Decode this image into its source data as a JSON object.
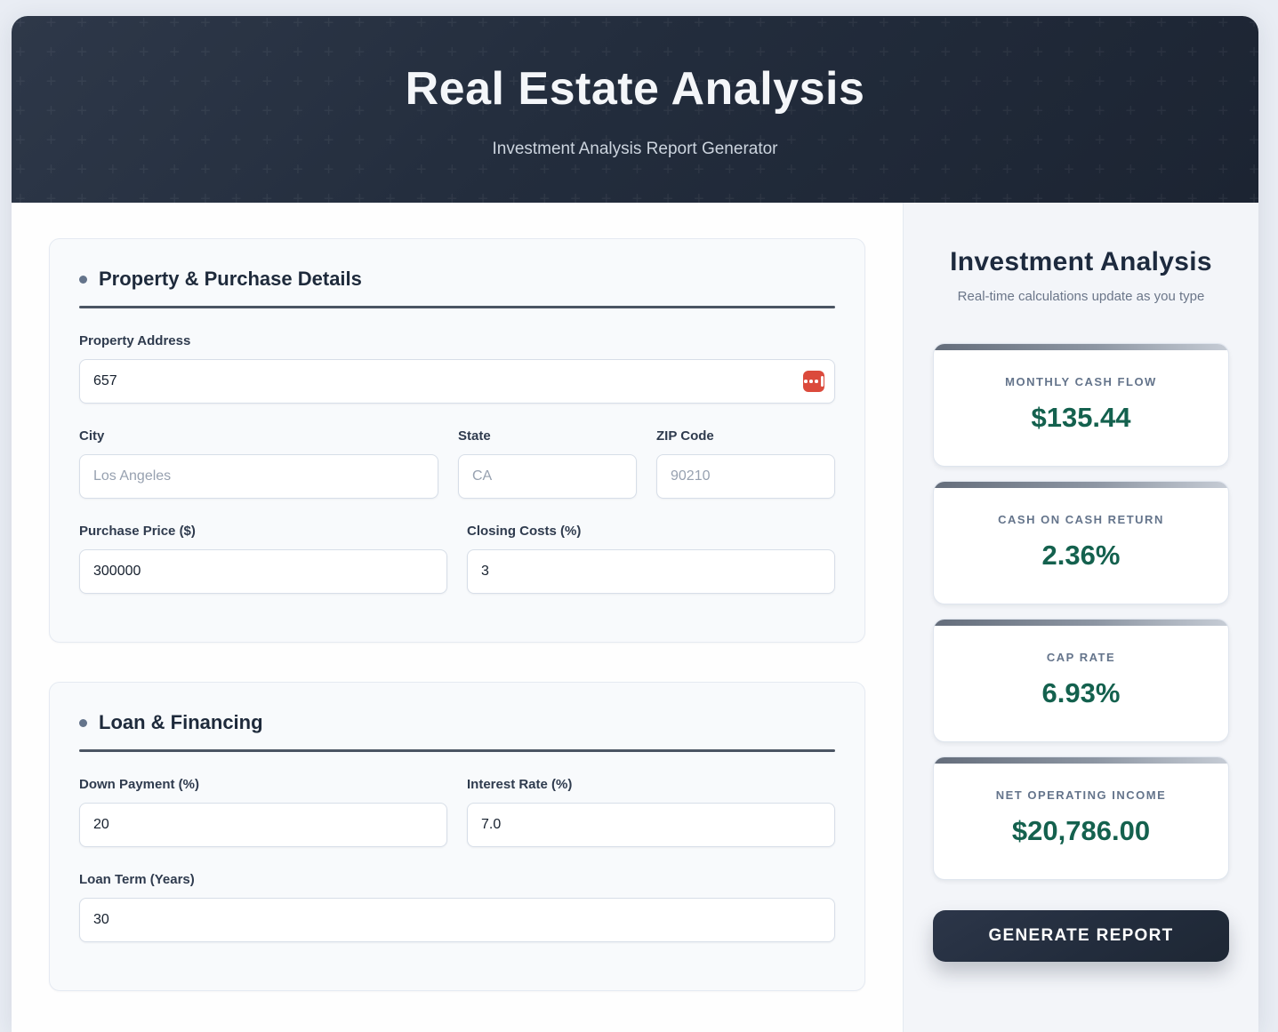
{
  "header": {
    "title": "Real Estate Analysis",
    "subtitle": "Investment Analysis Report Generator",
    "pattern_glyph": "+"
  },
  "form": {
    "sections": {
      "property": {
        "title": "Property & Purchase Details",
        "fields": {
          "address": {
            "label": "Property Address",
            "value": "657"
          },
          "city": {
            "label": "City",
            "placeholder": "Los Angeles"
          },
          "state": {
            "label": "State",
            "placeholder": "CA"
          },
          "zip": {
            "label": "ZIP Code",
            "placeholder": "90210"
          },
          "purchase_price": {
            "label": "Purchase Price ($)",
            "value": "300000"
          },
          "closing_costs": {
            "label": "Closing Costs (%)",
            "value": "3"
          }
        }
      },
      "loan": {
        "title": "Loan & Financing",
        "fields": {
          "down_payment": {
            "label": "Down Payment (%)",
            "value": "20"
          },
          "interest_rate": {
            "label": "Interest Rate (%)",
            "value": "7.0"
          },
          "loan_term": {
            "label": "Loan Term (Years)",
            "value": "30"
          }
        }
      }
    }
  },
  "sidebar": {
    "title": "Investment Analysis",
    "subtitle": "Real-time calculations update as you type",
    "metrics": [
      {
        "label": "MONTHLY CASH FLOW",
        "value": "$135.44"
      },
      {
        "label": "CASH ON CASH RETURN",
        "value": "2.36%"
      },
      {
        "label": "CAP RATE",
        "value": "6.93%"
      },
      {
        "label": "NET OPERATING INCOME",
        "value": "$20,786.00"
      }
    ],
    "generate_button": "GENERATE REPORT"
  },
  "icons": {
    "autofill": "password-autofill-icon"
  },
  "colors": {
    "value_green": "#14614e",
    "header_bg": "#232d3d",
    "button_bg": "#222c3c",
    "autofill_red": "#db4a3c",
    "divider": "#4b5563",
    "sidebar_bg": "#f3f5f9"
  }
}
